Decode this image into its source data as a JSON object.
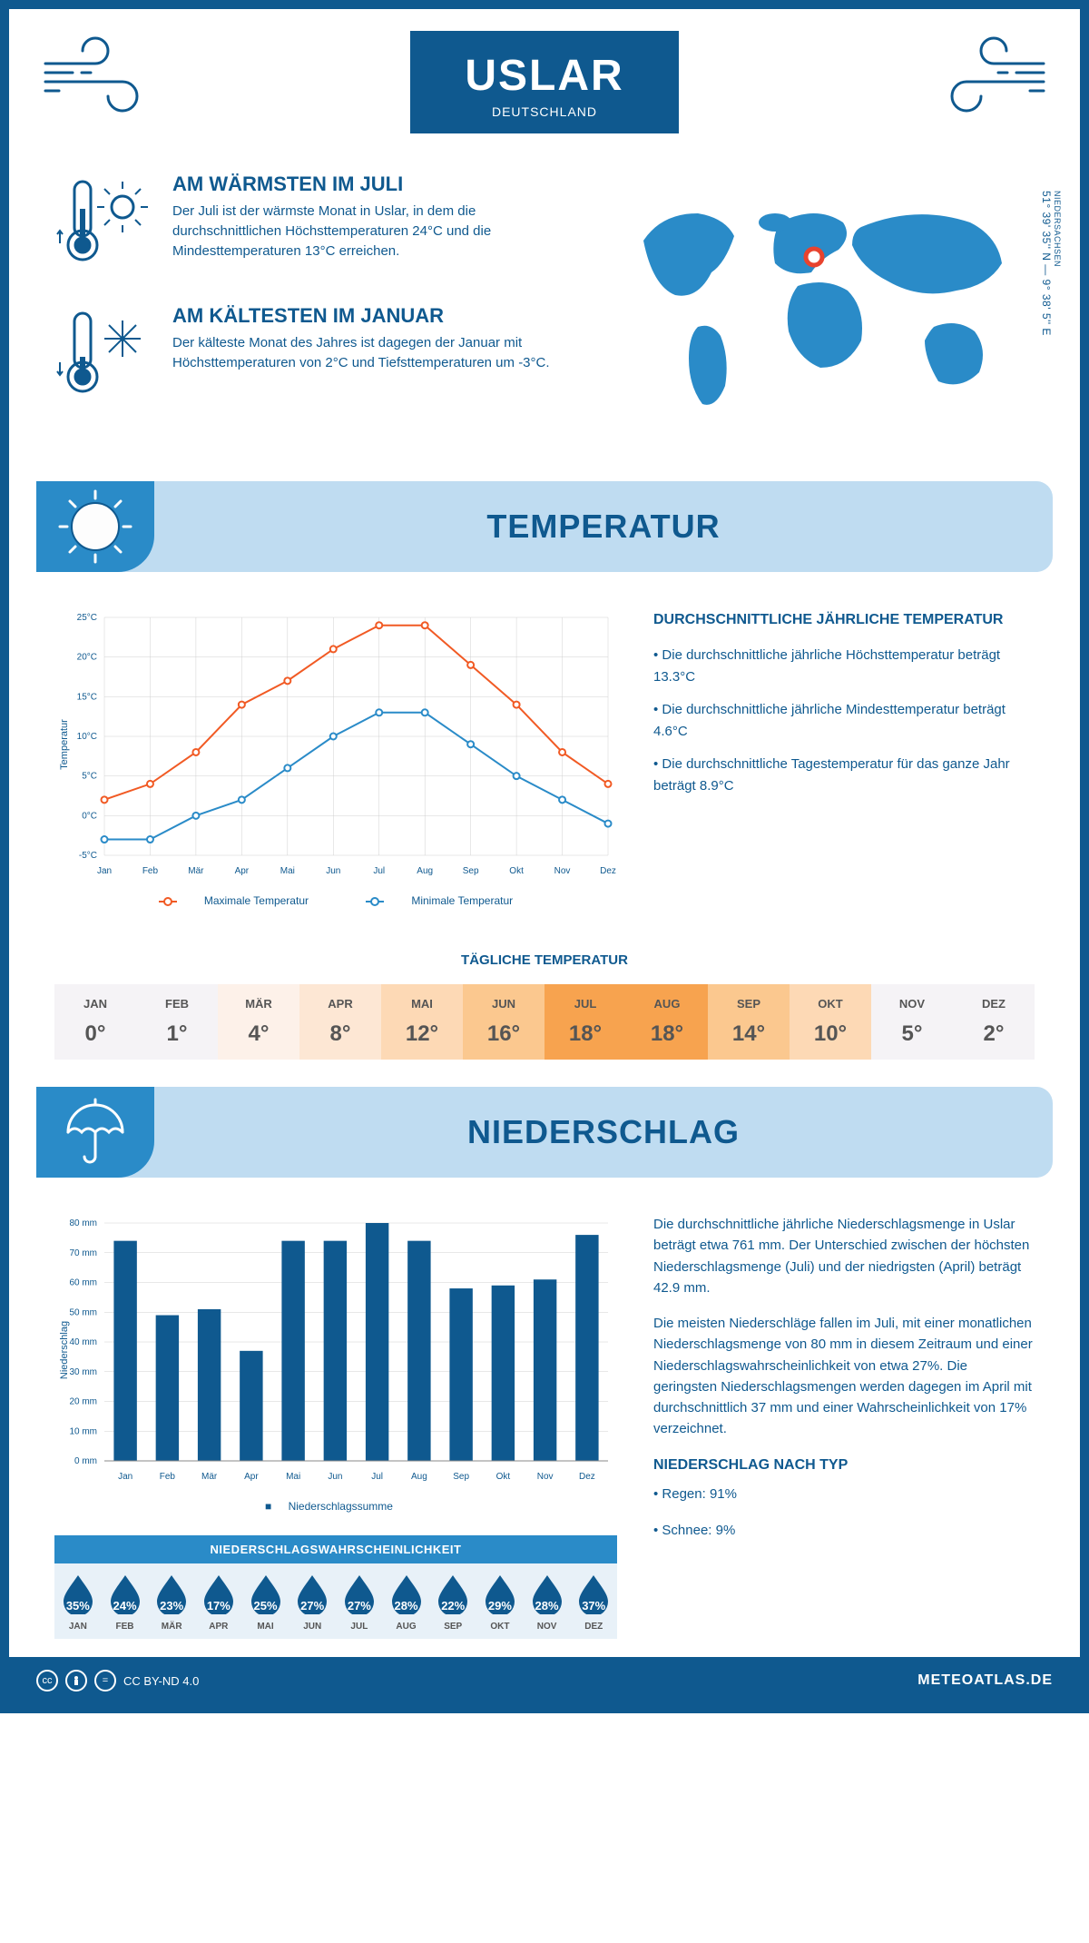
{
  "header": {
    "city": "USLAR",
    "country": "DEUTSCHLAND"
  },
  "location": {
    "coordinates": "51° 39' 35'' N — 9° 38' 5'' E",
    "state": "NIEDERSACHSEN"
  },
  "colors": {
    "primary": "#0f598f",
    "banner_bg": "#bfdcf1",
    "banner_cap": "#2a8bc8",
    "max_line": "#f15a24",
    "min_line": "#2a8bc8",
    "bar": "#0f598f",
    "page_bg": "#ffffff",
    "grid": "#d0d0d0"
  },
  "warmest": {
    "title": "AM WÄRMSTEN IM JULI",
    "text": "Der Juli ist der wärmste Monat in Uslar, in dem die durchschnittlichen Höchsttemperaturen 24°C und die Mindesttemperaturen 13°C erreichen."
  },
  "coldest": {
    "title": "AM KÄLTESTEN IM JANUAR",
    "text": "Der kälteste Monat des Jahres ist dagegen der Januar mit Höchsttemperaturen von 2°C und Tiefsttemperaturen um -3°C."
  },
  "section_temp_title": "TEMPERATUR",
  "section_precip_title": "NIEDERSCHLAG",
  "month_labels": [
    "Jan",
    "Feb",
    "Mär",
    "Apr",
    "Mai",
    "Jun",
    "Jul",
    "Aug",
    "Sep",
    "Okt",
    "Nov",
    "Dez"
  ],
  "month_labels_upper": [
    "JAN",
    "FEB",
    "MÄR",
    "APR",
    "MAI",
    "JUN",
    "JUL",
    "AUG",
    "SEP",
    "OKT",
    "NOV",
    "DEZ"
  ],
  "temp_chart": {
    "type": "line",
    "y_axis_label": "Temperatur",
    "y_min": -5,
    "y_max": 25,
    "y_step": 5,
    "y_ticks": [
      "-5°C",
      "0°C",
      "5°C",
      "10°C",
      "15°C",
      "20°C",
      "25°C"
    ],
    "max_series": [
      2,
      4,
      8,
      14,
      17,
      21,
      24,
      24,
      19,
      14,
      8,
      4
    ],
    "min_series": [
      -3,
      -3,
      0,
      2,
      6,
      10,
      13,
      13,
      9,
      5,
      2,
      -1
    ],
    "legend_max": "Maximale Temperatur",
    "legend_min": "Minimale Temperatur"
  },
  "temp_summary": {
    "title": "DURCHSCHNITTLICHE JÄHRLICHE TEMPERATUR",
    "b1": "• Die durchschnittliche jährliche Höchsttemperatur beträgt 13.3°C",
    "b2": "• Die durchschnittliche jährliche Mindesttemperatur beträgt 4.6°C",
    "b3": "• Die durchschnittliche Tagestemperatur für das ganze Jahr beträgt 8.9°C"
  },
  "daily_temp": {
    "title": "TÄGLICHE TEMPERATUR",
    "values": [
      "0°",
      "1°",
      "4°",
      "8°",
      "12°",
      "16°",
      "18°",
      "18°",
      "14°",
      "10°",
      "5°",
      "2°"
    ],
    "colors": [
      "#f5f3f6",
      "#f5f3f6",
      "#fdf1e9",
      "#fde7d4",
      "#fdd9b5",
      "#fbc88f",
      "#f7a34f",
      "#f7a34f",
      "#fbc88f",
      "#fdd9b5",
      "#f5f3f6",
      "#f5f3f6"
    ]
  },
  "precip_chart": {
    "type": "bar",
    "y_axis_label": "Niederschlag",
    "y_min": 0,
    "y_max": 80,
    "y_step": 10,
    "y_ticks": [
      "0 mm",
      "10 mm",
      "20 mm",
      "30 mm",
      "40 mm",
      "50 mm",
      "60 mm",
      "70 mm",
      "80 mm"
    ],
    "values": [
      74,
      49,
      51,
      37,
      74,
      74,
      80,
      74,
      58,
      59,
      61,
      76
    ],
    "legend": "Niederschlagssumme"
  },
  "precip_text": {
    "p1": "Die durchschnittliche jährliche Niederschlagsmenge in Uslar beträgt etwa 761 mm. Der Unterschied zwischen der höchsten Niederschlagsmenge (Juli) und der niedrigsten (April) beträgt 42.9 mm.",
    "p2": "Die meisten Niederschläge fallen im Juli, mit einer monatlichen Niederschlagsmenge von 80 mm in diesem Zeitraum und einer Niederschlagswahrscheinlichkeit von etwa 27%. Die geringsten Niederschlagsmengen werden dagegen im April mit durchschnittlich 37 mm und einer Wahrscheinlichkeit von 17% verzeichnet.",
    "type_title": "NIEDERSCHLAG NACH TYP",
    "type_rain": "• Regen: 91%",
    "type_snow": "• Schnee: 9%"
  },
  "probability": {
    "title": "NIEDERSCHLAGSWAHRSCHEINLICHKEIT",
    "values": [
      "35%",
      "24%",
      "23%",
      "17%",
      "25%",
      "27%",
      "27%",
      "28%",
      "22%",
      "29%",
      "28%",
      "37%"
    ]
  },
  "footer": {
    "license": "CC BY-ND 4.0",
    "site": "METEOATLAS.DE"
  }
}
